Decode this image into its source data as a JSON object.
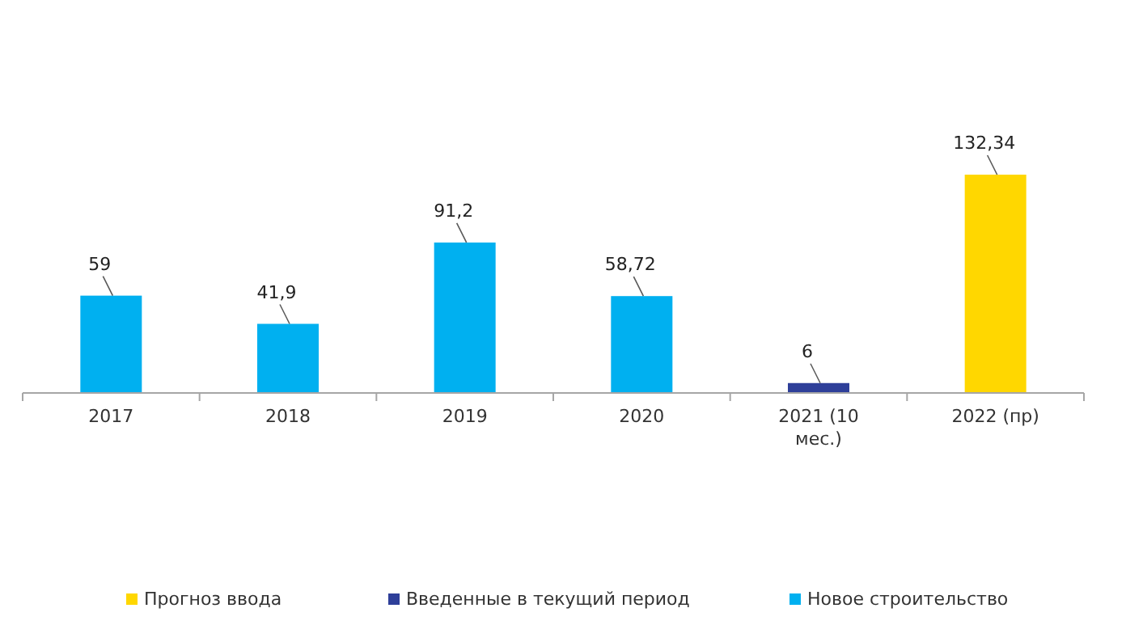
{
  "chart_data": {
    "type": "bar",
    "categories": [
      "2017",
      "2018",
      "2019",
      "2020",
      "2021 (10 мес.)",
      "2022 (пр)"
    ],
    "series": [
      {
        "name": "Прогноз ввода",
        "color": "#ffd700",
        "values": [
          null,
          null,
          null,
          null,
          null,
          132.34
        ],
        "value_labels": [
          null,
          null,
          null,
          null,
          null,
          "132,34"
        ]
      },
      {
        "name": "Введенные в текущий период",
        "color": "#2e3f99",
        "values": [
          null,
          null,
          null,
          null,
          6,
          null
        ],
        "value_labels": [
          null,
          null,
          null,
          null,
          "6",
          null
        ]
      },
      {
        "name": "Новое строительство",
        "color": "#00b0f0",
        "values": [
          59,
          41.9,
          91.2,
          58.72,
          null,
          null
        ],
        "value_labels": [
          "59",
          "41,9",
          "91,2",
          "58,72",
          null,
          null
        ]
      }
    ],
    "legend": "bottom"
  }
}
